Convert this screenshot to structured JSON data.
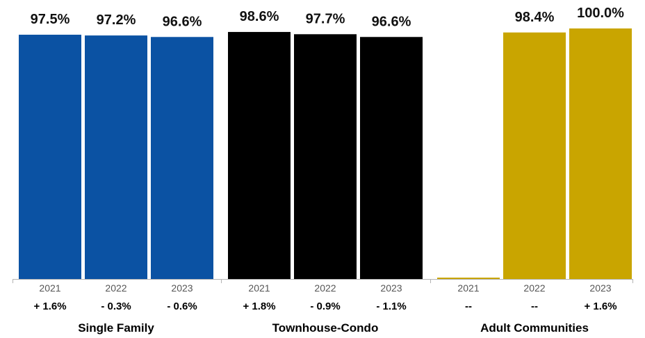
{
  "chart_data": {
    "type": "bar",
    "ylim": [
      0,
      100
    ],
    "groups": [
      {
        "name": "Single Family",
        "color": "#0b52a3",
        "bars": [
          {
            "year": "2021",
            "value": 97.5,
            "label": "97.5%",
            "change": "+ 1.6%"
          },
          {
            "year": "2022",
            "value": 97.2,
            "label": "97.2%",
            "change": "- 0.3%"
          },
          {
            "year": "2023",
            "value": 96.6,
            "label": "96.6%",
            "change": "- 0.6%"
          }
        ]
      },
      {
        "name": "Townhouse-Condo",
        "color": "#000000",
        "bars": [
          {
            "year": "2021",
            "value": 98.6,
            "label": "98.6%",
            "change": "+ 1.8%"
          },
          {
            "year": "2022",
            "value": 97.7,
            "label": "97.7%",
            "change": "- 0.9%"
          },
          {
            "year": "2023",
            "value": 96.6,
            "label": "96.6%",
            "change": "- 1.1%"
          }
        ]
      },
      {
        "name": "Adult Communities",
        "color": "#c9a500",
        "bars": [
          {
            "year": "2021",
            "value": 0,
            "label": "",
            "change": "--"
          },
          {
            "year": "2022",
            "value": 98.4,
            "label": "98.4%",
            "change": "--"
          },
          {
            "year": "2023",
            "value": 100.0,
            "label": "100.0%",
            "change": "+ 1.6%"
          }
        ]
      }
    ]
  }
}
